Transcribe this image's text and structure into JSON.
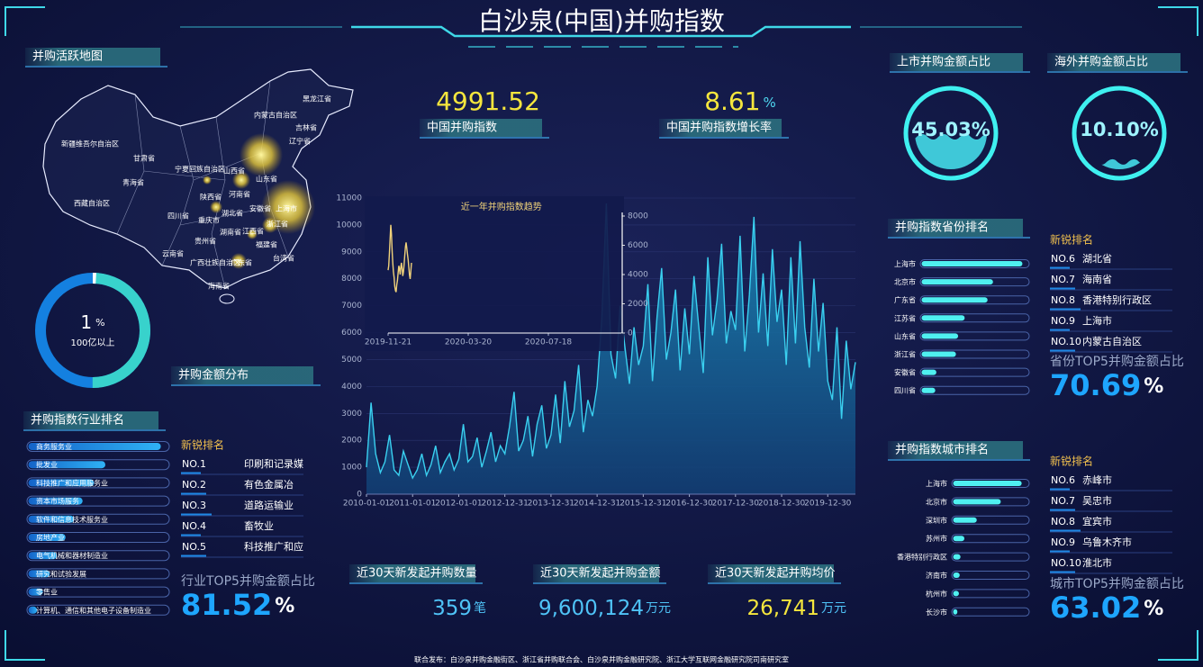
{
  "header": {
    "title": "白沙泉(中国)并购指数"
  },
  "map": {
    "title": "并购活跃地图",
    "regions": [
      "黑龙江省",
      "内蒙古自治区",
      "吉林省",
      "辽宁省",
      "新疆维吾尔自治区",
      "甘肃省",
      "宁夏回族自治区",
      "青海省",
      "山西省",
      "山东省",
      "西藏自治区",
      "陕西省",
      "河南省",
      "四川省",
      "湖北省",
      "安徽省",
      "上海市",
      "浙江省",
      "重庆市",
      "湖南省",
      "江西省",
      "福建省",
      "贵州省",
      "云南省",
      "广西壮族自治区",
      "广东省",
      "台湾省",
      "海南省"
    ]
  },
  "scale_ring": {
    "value": 1,
    "unit": "%",
    "label": "100亿以上"
  },
  "distribution": {
    "title": "并购金额分布"
  },
  "industry": {
    "title": "并购指数行业排名",
    "items": [
      {
        "name": "商务服务业",
        "value": 95
      },
      {
        "name": "批发业",
        "value": 56
      },
      {
        "name": "科技推广和应用服务业",
        "value": 48
      },
      {
        "name": "资本市场服务",
        "value": 40
      },
      {
        "name": "软件和信息技术服务业",
        "value": 34
      },
      {
        "name": "房地产业",
        "value": 28
      },
      {
        "name": "电气机械和器材制造业",
        "value": 22
      },
      {
        "name": "研究和试验发展",
        "value": 17
      },
      {
        "name": "零售业",
        "value": 12
      },
      {
        "name": "计算机、通信和其他电子设备制造业",
        "value": 8
      }
    ],
    "new_title": "新锐排名",
    "new_items": [
      {
        "rank": "NO.1",
        "name": "印刷和记录媒"
      },
      {
        "rank": "NO.2",
        "name": "有色金属冶"
      },
      {
        "rank": "NO.3",
        "name": "道路运输业"
      },
      {
        "rank": "NO.4",
        "name": "畜牧业"
      },
      {
        "rank": "NO.5",
        "name": "科技推广和应"
      }
    ],
    "top5_label": "行业TOP5并购金额占比",
    "top5_value": 81.52,
    "top5_unit": "%"
  },
  "kpis": [
    {
      "value": 4991.52,
      "label": "中国并购指数"
    },
    {
      "value": 8.61,
      "unit": "%",
      "label": "中国并购指数增长率"
    }
  ],
  "trend": {
    "type": "area",
    "color": "#3ad0f0",
    "xlim": [
      0,
      106
    ],
    "xticks": [
      {
        "value": 0,
        "label": "2010-01-01"
      },
      {
        "value": 10,
        "label": "2011-01-01"
      },
      {
        "value": 20,
        "label": "2012-01-01"
      },
      {
        "value": 30,
        "label": "2012-12-31"
      },
      {
        "value": 40,
        "label": "2013-12-31"
      },
      {
        "value": 50,
        "label": "2014-12-31"
      },
      {
        "value": 60,
        "label": "2015-12-31"
      },
      {
        "value": 70,
        "label": "2016-12-30"
      },
      {
        "value": 80,
        "label": "2017-12-30"
      },
      {
        "value": 90,
        "label": "2018-12-30"
      },
      {
        "value": 100,
        "label": "2019-12-30"
      }
    ],
    "ylim": [
      0,
      11000
    ],
    "yticks": [
      0,
      1000,
      2000,
      3000,
      4000,
      5000,
      6000,
      7000,
      8000,
      9000,
      10000,
      11000
    ],
    "values": [
      1000,
      3400,
      1500,
      800,
      1200,
      2200,
      900,
      700,
      1600,
      1100,
      600,
      900,
      1500,
      700,
      1100,
      1800,
      800,
      1200,
      1500,
      900,
      1300,
      2600,
      1200,
      1400,
      2100,
      1000,
      1600,
      2300,
      1200,
      1800,
      1500,
      2500,
      3800,
      1600,
      2000,
      2900,
      1400,
      2600,
      3300,
      1700,
      2200,
      3700,
      1900,
      4200,
      2500,
      3100,
      4800,
      2300,
      3500,
      2900,
      4000,
      6500,
      10800,
      5200,
      4300,
      7000,
      5500,
      4100,
      6200,
      4800,
      5500,
      7800,
      4200,
      6600,
      8400,
      5000,
      6000,
      7600,
      4600,
      6900,
      5200,
      8100,
      6300,
      4500,
      8800,
      5900,
      7200,
      9300,
      5600,
      6800,
      6100,
      9600,
      5300,
      7400,
      10300,
      6000,
      8200,
      5500,
      9100,
      6400,
      7600,
      4800,
      8800,
      5600,
      9400,
      6200,
      4700,
      8000,
      5300,
      7100,
      4200,
      3500,
      6200,
      2800,
      5700,
      3900,
      4900
    ]
  },
  "inset": {
    "type": "line",
    "title": "近一年并购指数趋势",
    "color": "#f0d27a",
    "xlim": [
      0,
      350
    ],
    "xticks": [
      {
        "value": 0,
        "label": "2019-11-21"
      },
      {
        "value": 120,
        "label": "2020-03-20"
      },
      {
        "value": 240,
        "label": "2020-07-18"
      }
    ],
    "ylim": [
      0,
      8000
    ],
    "yticks": [
      0,
      2000,
      4000,
      6000,
      8000
    ],
    "values": [
      4300,
      4600,
      5500,
      6400,
      7400,
      6800,
      5600,
      4800,
      4200,
      3800,
      3200,
      2900,
      2800,
      3300,
      3600,
      4100,
      4600,
      4400,
      4000,
      4500,
      4800,
      4400,
      3900,
      4200,
      4700,
      5300,
      5900,
      6200,
      5800,
      5400,
      5000,
      4500,
      4000,
      3700,
      4200,
      4800
    ]
  },
  "recent": [
    {
      "label": "近30天新发起并购数量",
      "value": "359",
      "unit": "笔"
    },
    {
      "label": "近30天新发起并购金额",
      "value": "9,600,124",
      "unit": "万元"
    },
    {
      "label": "近30天新发起并购均价",
      "value": "26,741",
      "unit": "万元"
    }
  ],
  "share": [
    {
      "title": "上市并购金额占比",
      "value": 45.03,
      "value_label": "45.03%"
    },
    {
      "title": "海外并购金额占比",
      "value": 10.1,
      "value_label": "10.10%"
    }
  ],
  "province": {
    "title": "并购指数省份排名",
    "items": [
      {
        "name": "上海市",
        "value": 95
      },
      {
        "name": "北京市",
        "value": 68
      },
      {
        "name": "广东省",
        "value": 63
      },
      {
        "name": "江苏省",
        "value": 42
      },
      {
        "name": "山东省",
        "value": 36
      },
      {
        "name": "浙江省",
        "value": 34
      },
      {
        "name": "安徽省",
        "value": 16
      },
      {
        "name": "四川省",
        "value": 15
      }
    ],
    "new_title": "新锐排名",
    "new_items": [
      {
        "rank": "NO.6",
        "name": "湖北省"
      },
      {
        "rank": "NO.7",
        "name": "海南省"
      },
      {
        "rank": "NO.8",
        "name": "香港特别行政区"
      },
      {
        "rank": "NO.9",
        "name": "上海市"
      },
      {
        "rank": "NO.10",
        "name": "内蒙古自治区"
      }
    ],
    "top5_label": "省份TOP5并购金额占比",
    "top5_value": 70.69,
    "top5_unit": "%"
  },
  "city": {
    "title": "并购指数城市排名",
    "items": [
      {
        "name": "上海市",
        "value": 92
      },
      {
        "name": "北京市",
        "value": 65
      },
      {
        "name": "深圳市",
        "value": 34
      },
      {
        "name": "苏州市",
        "value": 18
      },
      {
        "name": "香港特别行政区",
        "value": 13
      },
      {
        "name": "济南市",
        "value": 12
      },
      {
        "name": "杭州市",
        "value": 11
      },
      {
        "name": "长沙市",
        "value": 9
      }
    ],
    "new_title": "新锐排名",
    "new_items": [
      {
        "rank": "NO.6",
        "name": "赤峰市"
      },
      {
        "rank": "NO.7",
        "name": "吴忠市"
      },
      {
        "rank": "NO.8",
        "name": "宜宾市"
      },
      {
        "rank": "NO.9",
        "name": "乌鲁木齐市"
      },
      {
        "rank": "NO.10",
        "name": "淮北市"
      }
    ],
    "top5_label": "城市TOP5并购金额占比",
    "top5_value": 63.02,
    "top5_unit": "%"
  },
  "footer": "联合发布：白沙泉并购金融街区、浙江省并购联合会、白沙泉并购金融研究院、浙江大学互联网金融研究院司南研究室"
}
